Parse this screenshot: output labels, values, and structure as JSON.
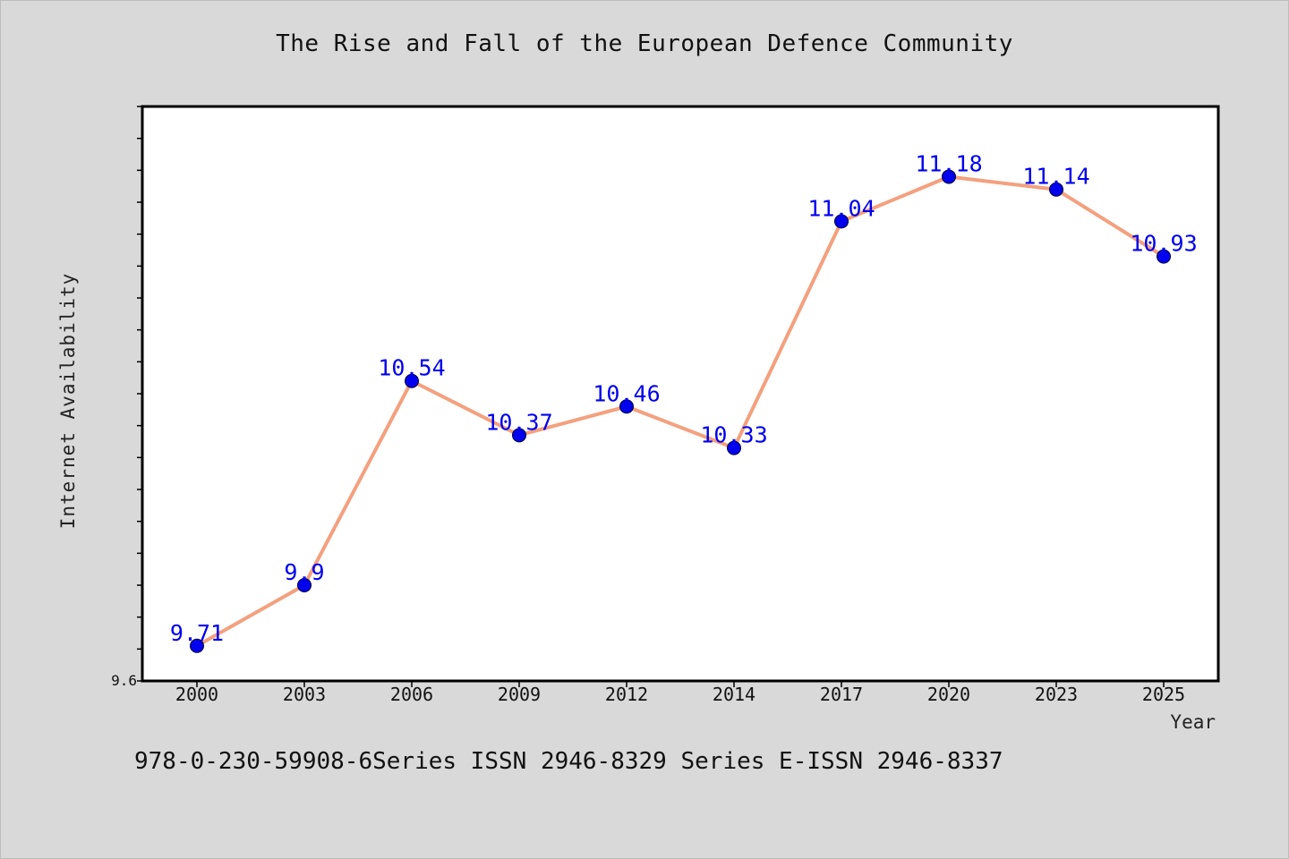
{
  "chart_data": {
    "type": "line",
    "title": "The Rise and Fall of the European Defence Community",
    "xlabel": "Year",
    "ylabel": "Internet Availability",
    "categories": [
      "2000",
      "2003",
      "2006",
      "2009",
      "2012",
      "2014",
      "2017",
      "2020",
      "2023",
      "2025"
    ],
    "series": [
      {
        "values": [
          9.71,
          9.9,
          10.54,
          10.37,
          10.46,
          10.33,
          11.04,
          11.18,
          11.14,
          10.93
        ]
      }
    ],
    "data_labels": [
      "9.71",
      "9.9",
      "10.54",
      "10.37",
      "10.46",
      "10.33",
      "11.04",
      "11.18",
      "11.14",
      "10.93"
    ],
    "y_tick_labels": [
      "9.6"
    ],
    "ylim": [
      9.6,
      11.4
    ],
    "grid": false,
    "line_color": "#f4a07e",
    "marker_color": "#0000ee",
    "label_color": "#0000ee"
  },
  "footer": {
    "text": "978-0-230-59908-6Series ISSN 2946-8329 Series E-ISSN 2946-8337"
  }
}
